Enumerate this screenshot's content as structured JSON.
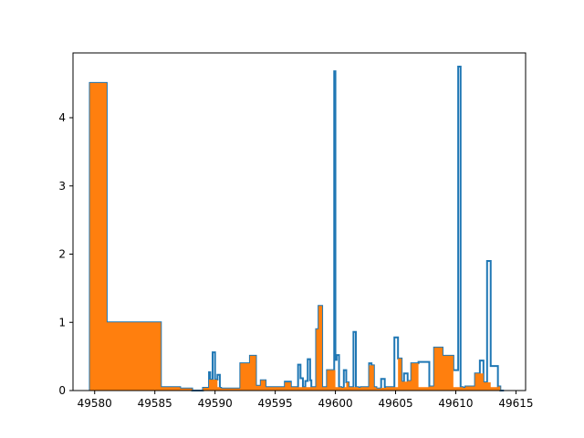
{
  "chart_data": {
    "type": "histogram-step",
    "title": "",
    "xlabel": "",
    "ylabel": "",
    "xlim": [
      49578.2,
      49615.8
    ],
    "ylim": [
      0,
      4.95
    ],
    "x_ticks": [
      {
        "value": 49580,
        "label": "49580"
      },
      {
        "value": 49585,
        "label": "49585"
      },
      {
        "value": 49590,
        "label": "49590"
      },
      {
        "value": 49595,
        "label": "49595"
      },
      {
        "value": 49600,
        "label": "49600"
      },
      {
        "value": 49605,
        "label": "49605"
      },
      {
        "value": 49610,
        "label": "49610"
      },
      {
        "value": 49615,
        "label": "49615"
      }
    ],
    "y_ticks": [
      {
        "value": 0,
        "label": "0"
      },
      {
        "value": 1,
        "label": "1"
      },
      {
        "value": 2,
        "label": "2"
      },
      {
        "value": 3,
        "label": "3"
      },
      {
        "value": 4,
        "label": "4"
      }
    ],
    "colors": {
      "outline": "#1f77b4",
      "fill": "#ff7f0e"
    },
    "series": [
      {
        "style": "step-outline",
        "edges": [
          49579.6,
          49581.0,
          49585.5,
          49587.1,
          49588.1,
          49589.0,
          49589.5,
          49589.6,
          49589.8,
          49590.0,
          49590.2,
          49590.4,
          49590.5,
          49592.1,
          49592.9,
          49593.4,
          49593.8,
          49594.2,
          49595.8,
          49596.3,
          49596.7,
          49596.9,
          49597.1,
          49597.3,
          49597.5,
          49597.7,
          49597.9,
          49598.0,
          49598.4,
          49598.6,
          49598.9,
          49599.3,
          49599.9,
          49600.0,
          49600.1,
          49600.3,
          49600.5,
          49600.7,
          49600.9,
          49601.1,
          49601.5,
          49601.7,
          49601.9,
          49602.1,
          49602.8,
          49603.0,
          49603.2,
          49603.3,
          49603.4,
          49603.8,
          49604.1,
          49604.2,
          49604.4,
          49604.9,
          49605.2,
          49605.5,
          49605.7,
          49606.0,
          49606.3,
          49606.6,
          49606.9,
          49607.8,
          49608.2,
          49608.6,
          49608.9,
          49609.8,
          49610.2,
          49610.4,
          49610.6,
          49610.8,
          49611.6,
          49612.0,
          49612.3,
          49612.6,
          49612.9,
          49613.5,
          49613.7,
          49614.0
        ],
        "values": [
          4.51,
          1.0,
          0.05,
          0.03,
          0.0,
          0.04,
          0.27,
          0.16,
          0.56,
          0.16,
          0.23,
          0.04,
          0.03,
          0.4,
          0.51,
          0.07,
          0.15,
          0.05,
          0.13,
          0.05,
          0.05,
          0.38,
          0.18,
          0.05,
          0.14,
          0.46,
          0.15,
          0.05,
          0.9,
          1.24,
          0.05,
          0.3,
          4.68,
          0.45,
          0.52,
          0.05,
          0.04,
          0.3,
          0.12,
          0.05,
          0.86,
          0.05,
          0.04,
          0.05,
          0.4,
          0.37,
          0.05,
          0.05,
          0.03,
          0.17,
          0.04,
          0.05,
          0.05,
          0.78,
          0.47,
          0.13,
          0.25,
          0.14,
          0.4,
          0.4,
          0.42,
          0.06,
          0.63,
          0.63,
          0.51,
          0.3,
          4.75,
          0.05,
          0.04,
          0.06,
          0.25,
          0.44,
          0.12,
          1.9,
          0.36,
          0.06,
          0.0
        ]
      },
      {
        "style": "step-filled",
        "edges": [
          49579.6,
          49581.0,
          49585.5,
          49587.1,
          49588.1,
          49589.0,
          49589.5,
          49589.6,
          49589.8,
          49590.0,
          49590.2,
          49590.4,
          49590.5,
          49592.1,
          49592.9,
          49593.4,
          49593.8,
          49594.2,
          49595.8,
          49596.3,
          49596.7,
          49596.9,
          49597.1,
          49597.3,
          49597.5,
          49597.7,
          49597.9,
          49598.0,
          49598.4,
          49598.6,
          49598.9,
          49599.3,
          49599.9,
          49600.0,
          49600.1,
          49600.3,
          49600.5,
          49600.7,
          49600.9,
          49601.1,
          49601.5,
          49601.7,
          49601.9,
          49602.1,
          49602.8,
          49603.0,
          49603.2,
          49603.3,
          49603.4,
          49603.8,
          49604.1,
          49604.2,
          49604.4,
          49604.9,
          49605.2,
          49605.5,
          49605.7,
          49606.0,
          49606.3,
          49606.6,
          49606.9,
          49607.8,
          49608.2,
          49608.6,
          49608.9,
          49609.8,
          49610.2,
          49610.4,
          49610.6,
          49610.8,
          49611.6,
          49612.0,
          49612.3,
          49612.6,
          49612.9,
          49613.5,
          49613.7,
          49614.0
        ],
        "values": [
          4.51,
          1.0,
          0.05,
          0.03,
          0.0,
          0.04,
          0.16,
          0.16,
          0.16,
          0.16,
          0.05,
          0.04,
          0.03,
          0.4,
          0.51,
          0.07,
          0.15,
          0.05,
          0.12,
          0.05,
          0.05,
          0.05,
          0.05,
          0.05,
          0.05,
          0.05,
          0.05,
          0.05,
          0.9,
          1.24,
          0.05,
          0.3,
          0.3,
          0.05,
          0.05,
          0.05,
          0.04,
          0.05,
          0.12,
          0.05,
          0.05,
          0.05,
          0.04,
          0.05,
          0.37,
          0.37,
          0.05,
          0.05,
          0.03,
          0.04,
          0.04,
          0.05,
          0.05,
          0.05,
          0.47,
          0.13,
          0.13,
          0.14,
          0.4,
          0.4,
          0.05,
          0.06,
          0.63,
          0.63,
          0.51,
          0.05,
          0.05,
          0.05,
          0.04,
          0.06,
          0.25,
          0.25,
          0.12,
          0.12,
          0.05,
          0.06,
          0.0
        ]
      }
    ]
  }
}
